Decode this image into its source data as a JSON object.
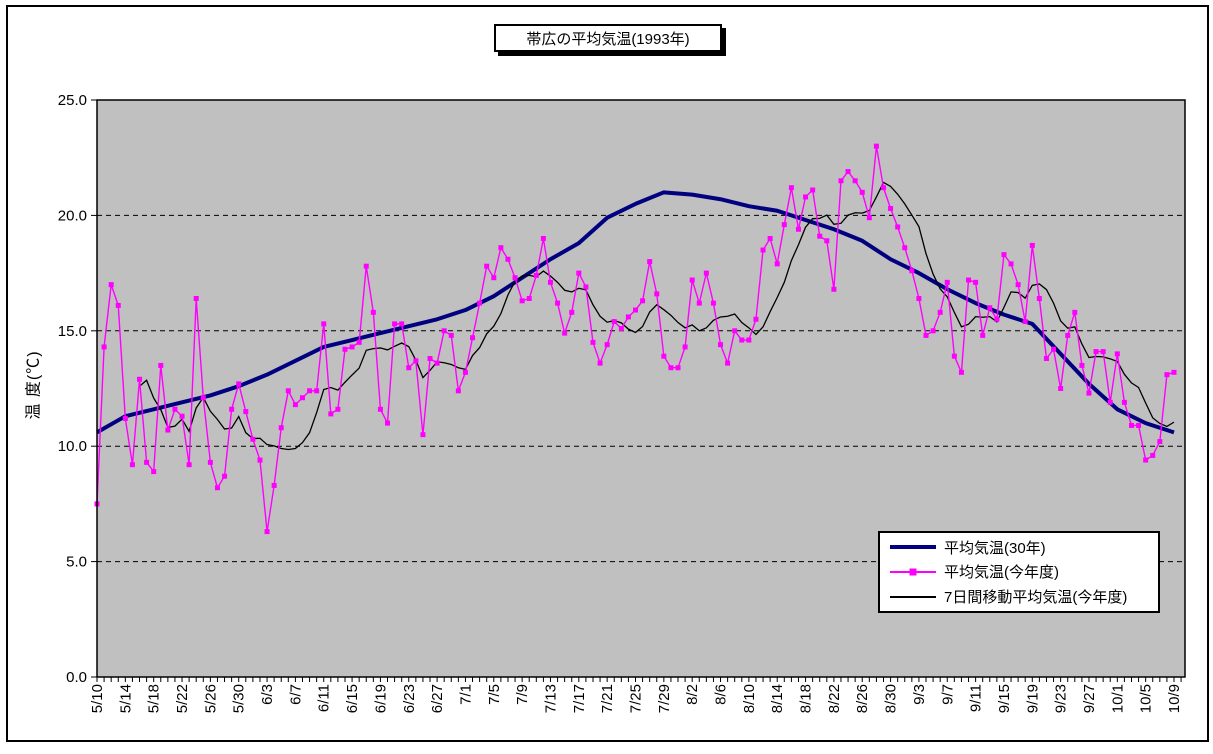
{
  "chart_title": "帯広の平均気温(1993年)",
  "y_axis": {
    "title": "温 度(℃)",
    "tick_labels": [
      "25.0",
      "20.0",
      "15.0",
      "10.0",
      "5.0",
      "0.0"
    ],
    "min": 0,
    "max": 25,
    "step": 5
  },
  "legend": {
    "items": [
      {
        "label": "平均気温(30年)",
        "color": "#000080",
        "line_width": 4,
        "marker": false
      },
      {
        "label": "平均気温(今年度)",
        "color": "#FF00FF",
        "line_width": 2,
        "marker": true
      },
      {
        "label": "7日間移動平均気温(今年度)",
        "color": "#000000",
        "line_width": 2,
        "marker": false
      }
    ]
  },
  "chart_data": {
    "type": "line",
    "title": "帯広の平均気温(1993年)",
    "xlabel": "",
    "ylabel": "温 度(℃)",
    "ylim": [
      0,
      25
    ],
    "ytick_step": 5,
    "grid": "horizontal dashed lines at 5,10,15,20",
    "plot_bg": "#C0C0C0",
    "legend_position": "inside bottom-right",
    "x_tick_labels": [
      "5/10",
      "5/14",
      "5/18",
      "5/22",
      "5/26",
      "5/30",
      "6/3",
      "6/7",
      "6/11",
      "6/15",
      "6/19",
      "6/23",
      "6/27",
      "7/1",
      "7/5",
      "7/9",
      "7/13",
      "7/17",
      "7/21",
      "7/25",
      "7/29",
      "8/2",
      "8/6",
      "8/10",
      "8/14",
      "8/18",
      "8/22",
      "8/26",
      "8/30",
      "9/3",
      "9/7",
      "9/11",
      "9/15",
      "9/19",
      "9/23",
      "9/27",
      "10/1",
      "10/5",
      "10/9"
    ],
    "categories": [
      "5/10",
      "5/11",
      "5/12",
      "5/13",
      "5/14",
      "5/15",
      "5/16",
      "5/17",
      "5/18",
      "5/19",
      "5/20",
      "5/21",
      "5/22",
      "5/23",
      "5/24",
      "5/25",
      "5/26",
      "5/27",
      "5/28",
      "5/29",
      "5/30",
      "5/31",
      "6/1",
      "6/2",
      "6/3",
      "6/4",
      "6/5",
      "6/6",
      "6/7",
      "6/8",
      "6/9",
      "6/10",
      "6/11",
      "6/12",
      "6/13",
      "6/14",
      "6/15",
      "6/16",
      "6/17",
      "6/18",
      "6/19",
      "6/20",
      "6/21",
      "6/22",
      "6/23",
      "6/24",
      "6/25",
      "6/26",
      "6/27",
      "6/28",
      "6/29",
      "6/30",
      "7/1",
      "7/2",
      "7/3",
      "7/4",
      "7/5",
      "7/6",
      "7/7",
      "7/8",
      "7/9",
      "7/10",
      "7/11",
      "7/12",
      "7/13",
      "7/14",
      "7/15",
      "7/16",
      "7/17",
      "7/18",
      "7/19",
      "7/20",
      "7/21",
      "7/22",
      "7/23",
      "7/24",
      "7/25",
      "7/26",
      "7/27",
      "7/28",
      "7/29",
      "7/30",
      "7/31",
      "8/1",
      "8/2",
      "8/3",
      "8/4",
      "8/5",
      "8/6",
      "8/7",
      "8/8",
      "8/9",
      "8/10",
      "8/11",
      "8/12",
      "8/13",
      "8/14",
      "8/15",
      "8/16",
      "8/17",
      "8/18",
      "8/19",
      "8/20",
      "8/21",
      "8/22",
      "8/23",
      "8/24",
      "8/25",
      "8/26",
      "8/27",
      "8/28",
      "8/29",
      "8/30",
      "8/31",
      "9/1",
      "9/2",
      "9/3",
      "9/4",
      "9/5",
      "9/6",
      "9/7",
      "9/8",
      "9/9",
      "9/10",
      "9/11",
      "9/12",
      "9/13",
      "9/14",
      "9/15",
      "9/16",
      "9/17",
      "9/18",
      "9/19",
      "9/20",
      "9/21",
      "9/22",
      "9/23",
      "9/24",
      "9/25",
      "9/26",
      "9/27",
      "9/28",
      "9/29",
      "9/30",
      "10/1",
      "10/2",
      "10/3",
      "10/4",
      "10/5",
      "10/6",
      "10/7",
      "10/8",
      "10/9"
    ],
    "series": [
      {
        "name": "平均気温(30年)",
        "color": "#000080",
        "style": "thick smooth line",
        "sampling": "values at every 4th day (aligned with x_tick_labels)",
        "values": [
          10.6,
          11.3,
          11.6,
          11.9,
          12.2,
          12.6,
          13.1,
          13.7,
          14.3,
          14.6,
          14.9,
          15.2,
          15.5,
          15.9,
          16.5,
          17.3,
          18.1,
          18.8,
          19.9,
          20.5,
          21.0,
          20.9,
          20.7,
          20.4,
          20.2,
          19.8,
          19.4,
          18.9,
          18.1,
          17.5,
          16.8,
          16.2,
          15.7,
          15.3,
          14.0,
          12.7,
          11.6,
          11.0,
          10.6
        ]
      },
      {
        "name": "平均気温(今年度)",
        "color": "#FF00FF",
        "style": "thin line with square markers, daily values",
        "values": [
          7.5,
          14.3,
          17.0,
          16.1,
          11.2,
          9.2,
          12.9,
          9.3,
          8.9,
          13.5,
          10.7,
          11.6,
          11.3,
          9.2,
          16.4,
          12.1,
          9.3,
          8.2,
          8.7,
          11.6,
          12.7,
          11.5,
          10.3,
          9.4,
          6.3,
          8.3,
          10.8,
          12.4,
          11.8,
          12.1,
          12.4,
          12.4,
          15.3,
          11.4,
          11.6,
          14.2,
          14.3,
          14.5,
          17.8,
          15.8,
          11.6,
          11.0,
          15.3,
          15.3,
          13.4,
          13.7,
          10.5,
          13.8,
          13.6,
          15.0,
          14.8,
          12.4,
          13.2,
          14.7,
          16.2,
          17.8,
          17.3,
          18.6,
          18.1,
          17.3,
          16.3,
          16.4,
          17.4,
          19.0,
          17.1,
          16.2,
          14.9,
          15.8,
          17.5,
          16.9,
          14.5,
          13.6,
          14.4,
          15.4,
          15.1,
          15.6,
          15.9,
          16.3,
          18.0,
          16.6,
          13.9,
          13.4,
          13.4,
          14.3,
          17.2,
          16.2,
          17.5,
          16.2,
          14.4,
          13.6,
          15.0,
          14.6,
          14.6,
          15.5,
          18.5,
          19.0,
          17.9,
          19.6,
          21.2,
          19.4,
          20.8,
          21.1,
          19.1,
          18.9,
          16.8,
          21.5,
          21.9,
          21.5,
          21.0,
          19.9,
          23.0,
          21.2,
          20.3,
          19.5,
          18.6,
          17.6,
          16.4,
          14.8,
          15.0,
          15.8,
          17.1,
          13.9,
          13.2,
          17.2,
          17.1,
          14.8,
          16.0,
          15.5,
          18.3,
          17.9,
          17.0,
          15.4,
          18.7,
          16.4,
          13.8,
          14.2,
          12.5,
          14.8,
          15.8,
          13.5,
          12.3,
          14.1,
          14.1,
          11.9,
          14.0,
          11.9,
          10.9,
          10.9,
          9.4,
          9.6,
          10.2,
          13.1,
          13.2
        ]
      },
      {
        "name": "7日間移動平均気温(今年度)",
        "color": "#000000",
        "style": "thin line, no markers",
        "derived": "trailing 7-day moving average of 平均気温(今年度)",
        "window": 7
      }
    ]
  }
}
